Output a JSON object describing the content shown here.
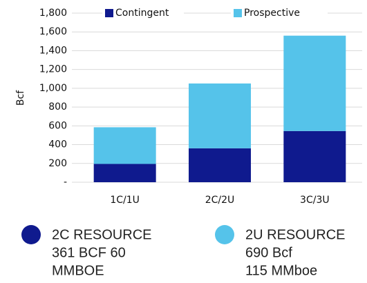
{
  "chart_data": {
    "type": "stacked_bar",
    "y_axis_label": "Bcf",
    "categories": [
      "1C/1U",
      "2C/2U",
      "3C/3U"
    ],
    "series": [
      {
        "name": "Contingent",
        "color": "#0f1a8e",
        "values": [
          195,
          361,
          545
        ]
      },
      {
        "name": "Prospective",
        "color": "#55c3ea",
        "values": [
          390,
          690,
          1015
        ]
      }
    ],
    "ylim": [
      0,
      1800
    ],
    "yticks": [
      {
        "value": 0,
        "label": "-"
      },
      200,
      400,
      600,
      800,
      {
        "value": 1000,
        "label": "1,000"
      },
      {
        "value": 1200,
        "label": "1,200"
      },
      {
        "value": 1400,
        "label": "1,400"
      },
      {
        "value": 1600,
        "label": "1,600"
      },
      {
        "value": 1800,
        "label": "1,800"
      }
    ],
    "grid": true,
    "legend": "top",
    "annotations": [
      {
        "color": "#0f1a8e",
        "lines": [
          "2C RESOURCE",
          "361 BCF 60",
          "MMBOE"
        ]
      },
      {
        "color": "#55c3ea",
        "lines": [
          "2U RESOURCE",
          "690 Bcf",
          "115 MMboe"
        ]
      }
    ]
  }
}
